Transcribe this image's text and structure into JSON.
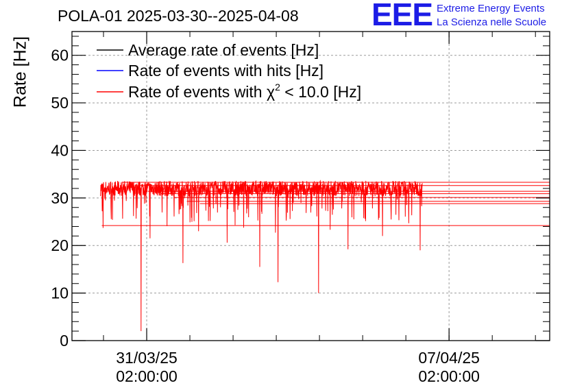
{
  "chart_data": {
    "type": "line",
    "title": "POLA-01 2025-03-30--2025-04-08",
    "ylabel": "Rate [Hz]",
    "xlabel": "",
    "ylim": [
      0,
      65
    ],
    "yticks": [
      0,
      10,
      20,
      30,
      40,
      50,
      60
    ],
    "xticks": [
      {
        "date": "31/03/25",
        "time": "02:00:00",
        "day": 1
      },
      {
        "date": "07/04/25",
        "time": "02:00:00",
        "day": 8
      }
    ],
    "xlim_days": [
      -0.73,
      10.33
    ],
    "grid": true,
    "legend_placement": "top-left",
    "series": [
      {
        "name": "Average rate of events [Hz]",
        "color": "#000000"
      },
      {
        "name": "Rate of events with hits [Hz]",
        "color": "#0000ff"
      },
      {
        "name_parts": [
          "Rate of events with ",
          "χ",
          "2",
          " < 10.0 [Hz]"
        ],
        "color": "#ff0000",
        "baseline": 32.0,
        "noise_amplitude": 1.6,
        "day_start": -0.07,
        "day_end": 7.38,
        "dips": [
          {
            "day": 0.87,
            "value": 2
          },
          {
            "day": 1.84,
            "value": 16.3
          },
          {
            "day": 3.62,
            "value": 15.5
          },
          {
            "day": 4.04,
            "value": 12.3
          },
          {
            "day": 4.98,
            "value": 10
          },
          {
            "day": 1.08,
            "value": 21.5
          },
          {
            "day": 2.86,
            "value": 20.6
          },
          {
            "day": 5.66,
            "value": 19.2
          },
          {
            "day": 7.33,
            "value": 19
          },
          {
            "day": 6.46,
            "value": 22
          },
          {
            "day": 2.2,
            "value": 23
          },
          {
            "day": 5.25,
            "value": 23.3
          },
          {
            "day": 3.98,
            "value": 22.7
          },
          {
            "day": -0.01,
            "value": 23.7
          }
        ],
        "return_levels": [
          33.3,
          32.6,
          31.4,
          30.9,
          30.1,
          29.3,
          28.8,
          24.2
        ]
      }
    ]
  },
  "logo": {
    "mark": "EEE",
    "line1": "Extreme Energy Events",
    "line2": "La Scienza nelle Scuole"
  }
}
